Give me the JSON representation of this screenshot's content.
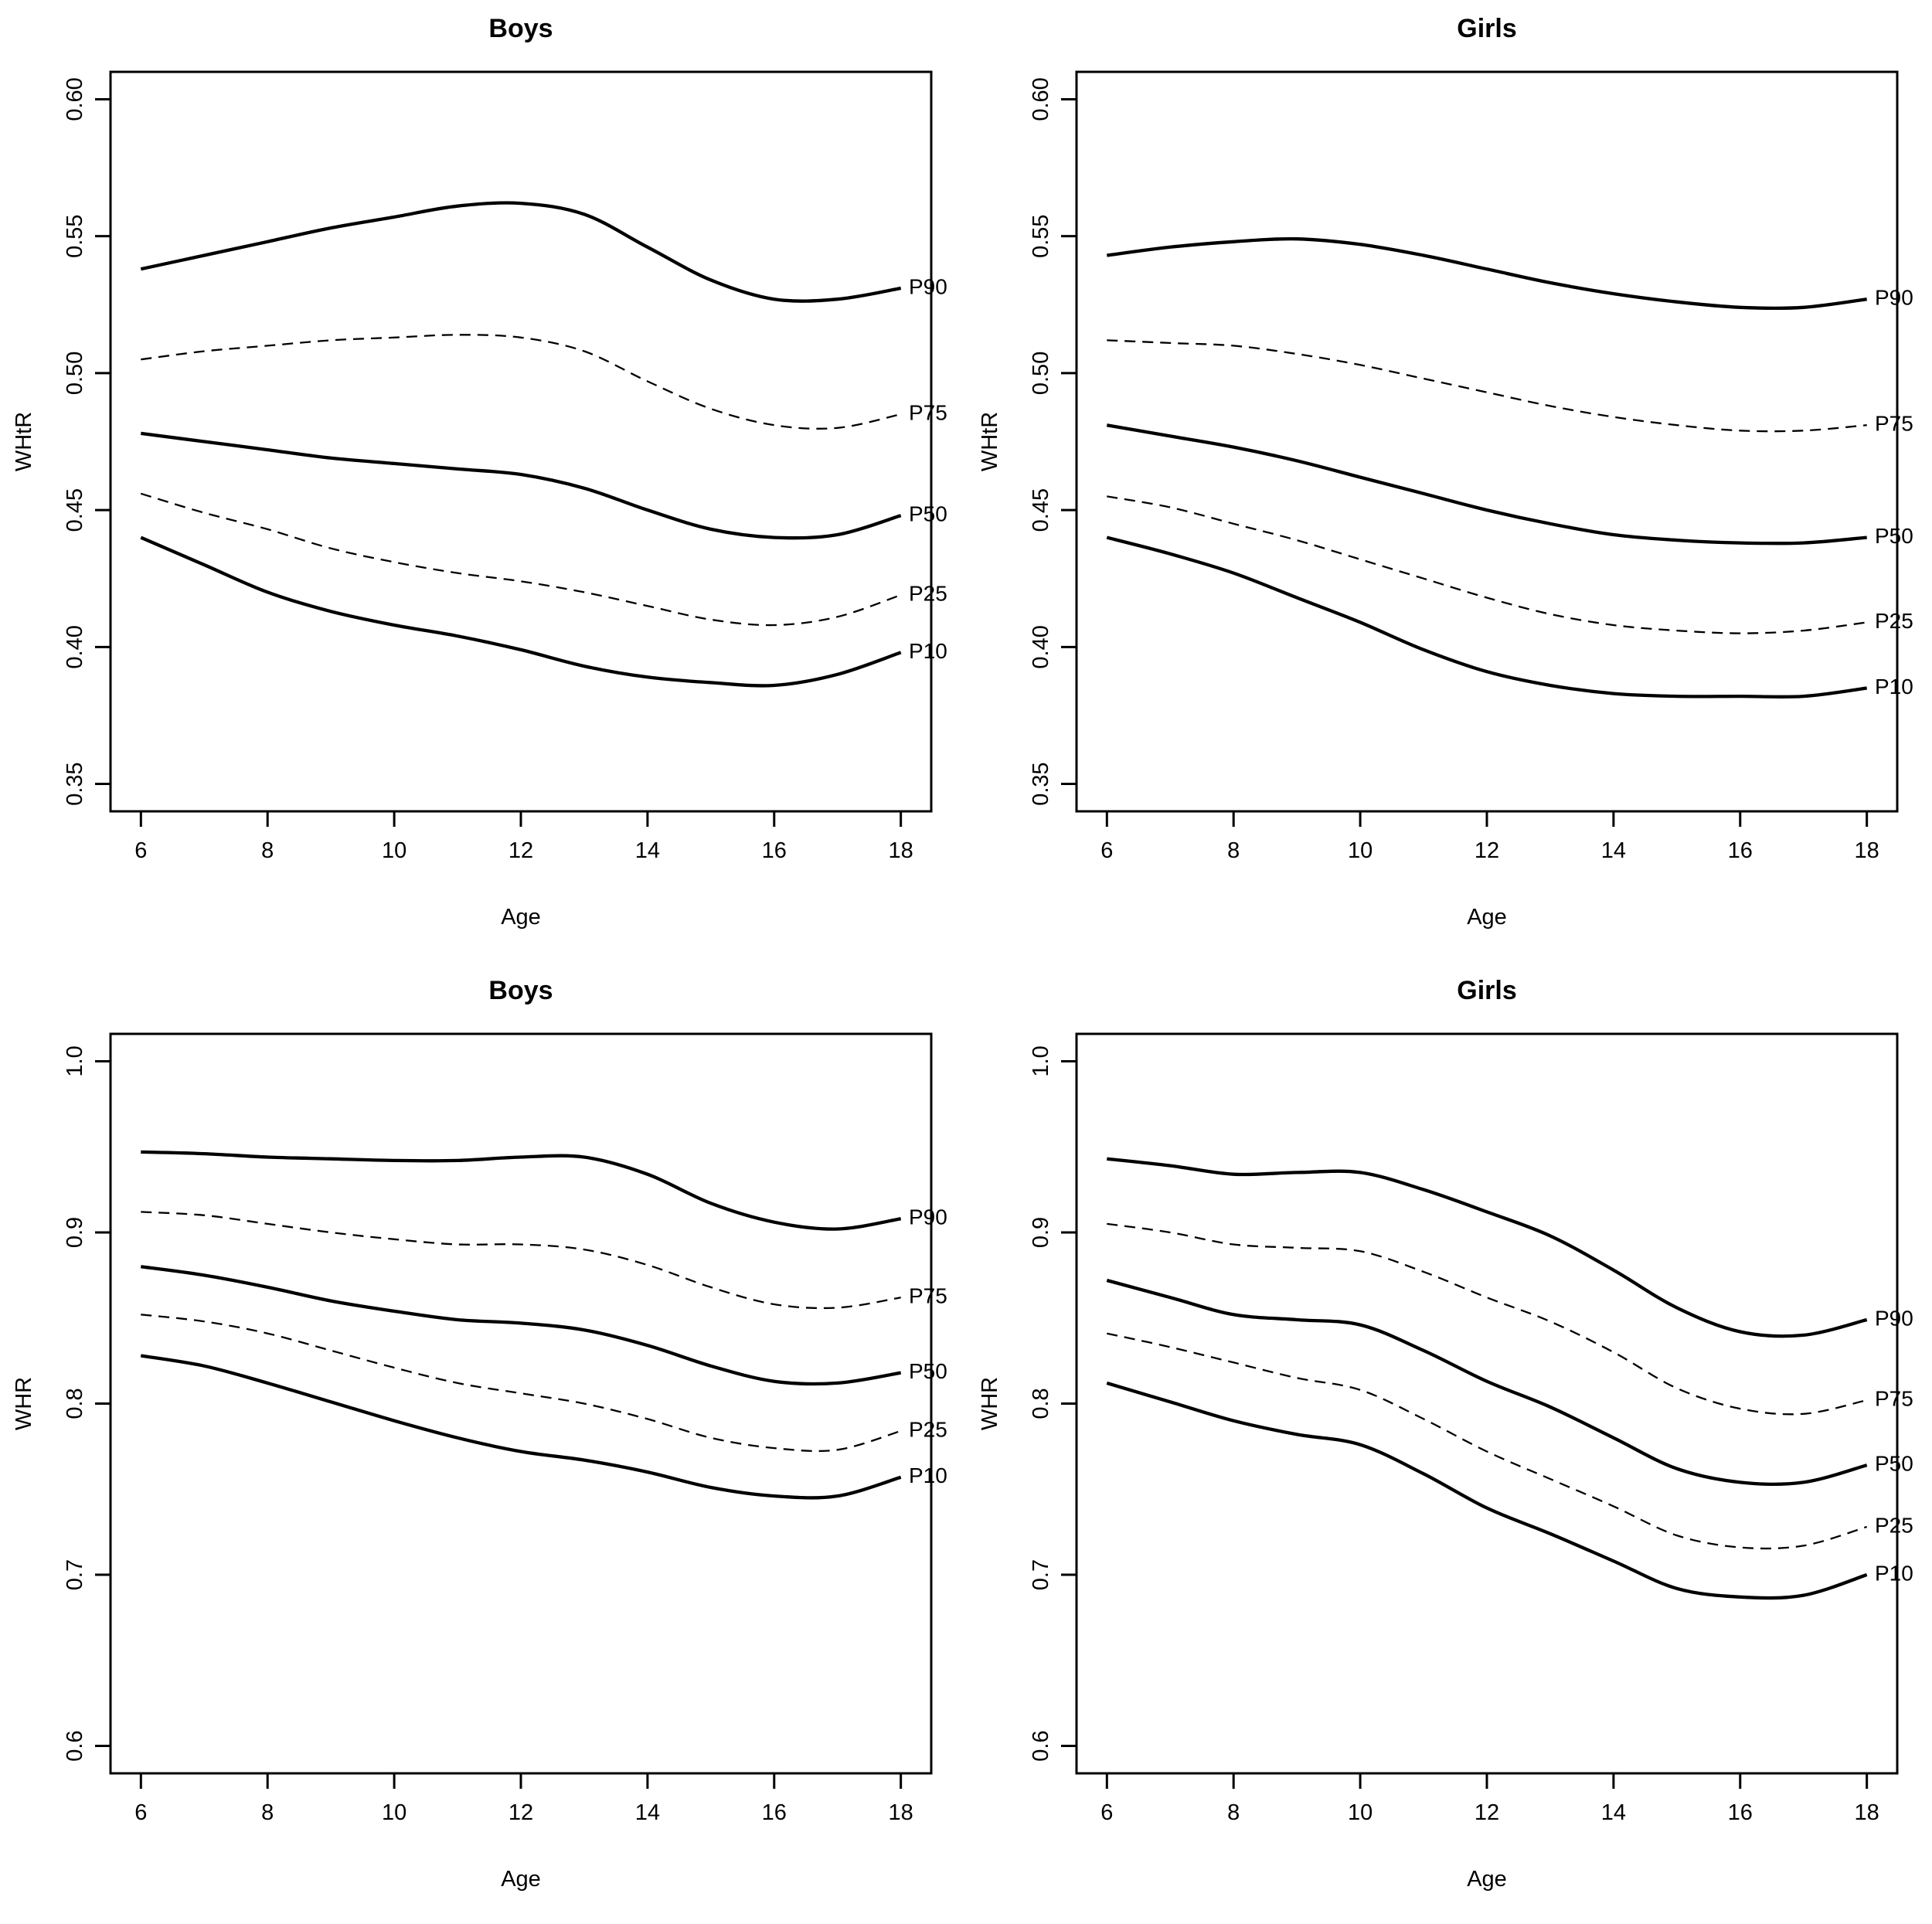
{
  "figure": {
    "background": "#ffffff",
    "ink": "#000000",
    "panels": 4,
    "description_labels": {
      "titles": [
        "Boys",
        "Girls",
        "Boys",
        "Girls"
      ],
      "y_axis_titles": [
        "WHtR",
        "WHtR",
        "WHR",
        "WHR"
      ],
      "x_axis_title": "Age",
      "curve_labels": [
        "P90",
        "P75",
        "P50",
        "P25",
        "P10"
      ]
    }
  },
  "chart_data": [
    {
      "type": "line",
      "title": "Boys",
      "xlabel": "Age",
      "ylabel": "WHtR",
      "x": [
        6,
        7,
        8,
        9,
        10,
        11,
        12,
        13,
        14,
        15,
        16,
        17,
        18
      ],
      "xticks": [
        6,
        8,
        10,
        12,
        14,
        16,
        18
      ],
      "xtick_labels": [
        "6",
        "8",
        "10",
        "12",
        "14",
        "16",
        "18"
      ],
      "yticks": [
        0.35,
        0.4,
        0.45,
        0.5,
        0.55,
        0.6
      ],
      "ytick_labels": [
        "0.35",
        "0.40",
        "0.45",
        "0.50",
        "0.55",
        "0.60"
      ],
      "xlim": [
        5.52,
        18.48
      ],
      "ylim": [
        0.34,
        0.61
      ],
      "grid": false,
      "legend_position": "curve-ends-right",
      "series": [
        {
          "name": "P90",
          "line_style": "solid",
          "values": [
            0.538,
            0.543,
            0.548,
            0.553,
            0.557,
            0.561,
            0.562,
            0.558,
            0.546,
            0.534,
            0.527,
            0.527,
            0.531
          ]
        },
        {
          "name": "P75",
          "line_style": "dashed",
          "values": [
            0.505,
            0.508,
            0.51,
            0.512,
            0.513,
            0.514,
            0.513,
            0.508,
            0.497,
            0.487,
            0.481,
            0.48,
            0.485
          ]
        },
        {
          "name": "P50",
          "line_style": "solid",
          "values": [
            0.478,
            0.475,
            0.472,
            0.469,
            0.467,
            0.465,
            0.463,
            0.458,
            0.45,
            0.443,
            0.44,
            0.441,
            0.448
          ]
        },
        {
          "name": "P25",
          "line_style": "dashed",
          "values": [
            0.456,
            0.449,
            0.443,
            0.436,
            0.431,
            0.427,
            0.424,
            0.42,
            0.415,
            0.41,
            0.408,
            0.411,
            0.419
          ]
        },
        {
          "name": "P10",
          "line_style": "solid",
          "values": [
            0.44,
            0.43,
            0.42,
            0.413,
            0.408,
            0.404,
            0.399,
            0.393,
            0.389,
            0.387,
            0.386,
            0.39,
            0.398
          ]
        }
      ]
    },
    {
      "type": "line",
      "title": "Girls",
      "xlabel": "Age",
      "ylabel": "WHtR",
      "x": [
        6,
        7,
        8,
        9,
        10,
        11,
        12,
        13,
        14,
        15,
        16,
        17,
        18
      ],
      "xticks": [
        6,
        8,
        10,
        12,
        14,
        16,
        18
      ],
      "xtick_labels": [
        "6",
        "8",
        "10",
        "12",
        "14",
        "16",
        "18"
      ],
      "yticks": [
        0.35,
        0.4,
        0.45,
        0.5,
        0.55,
        0.6
      ],
      "ytick_labels": [
        "0.35",
        "0.40",
        "0.45",
        "0.50",
        "0.55",
        "0.60"
      ],
      "xlim": [
        5.52,
        18.48
      ],
      "ylim": [
        0.34,
        0.61
      ],
      "grid": false,
      "legend_position": "curve-ends-right",
      "series": [
        {
          "name": "P90",
          "line_style": "solid",
          "values": [
            0.543,
            0.546,
            0.548,
            0.549,
            0.547,
            0.543,
            0.538,
            0.533,
            0.529,
            0.526,
            0.524,
            0.524,
            0.527
          ]
        },
        {
          "name": "P75",
          "line_style": "dashed",
          "values": [
            0.512,
            0.511,
            0.51,
            0.507,
            0.503,
            0.498,
            0.493,
            0.488,
            0.484,
            0.481,
            0.479,
            0.479,
            0.481
          ]
        },
        {
          "name": "P50",
          "line_style": "solid",
          "values": [
            0.481,
            0.477,
            0.473,
            0.468,
            0.462,
            0.456,
            0.45,
            0.445,
            0.441,
            0.439,
            0.438,
            0.438,
            0.44
          ]
        },
        {
          "name": "P25",
          "line_style": "dashed",
          "values": [
            0.455,
            0.451,
            0.445,
            0.439,
            0.432,
            0.425,
            0.418,
            0.412,
            0.408,
            0.406,
            0.405,
            0.406,
            0.409
          ]
        },
        {
          "name": "P10",
          "line_style": "solid",
          "values": [
            0.44,
            0.434,
            0.427,
            0.418,
            0.409,
            0.399,
            0.391,
            0.386,
            0.383,
            0.382,
            0.382,
            0.382,
            0.385
          ]
        }
      ]
    },
    {
      "type": "line",
      "title": "Boys",
      "xlabel": "Age",
      "ylabel": "WHR",
      "x": [
        6,
        7,
        8,
        9,
        10,
        11,
        12,
        13,
        14,
        15,
        16,
        17,
        18
      ],
      "xticks": [
        6,
        8,
        10,
        12,
        14,
        16,
        18
      ],
      "xtick_labels": [
        "6",
        "8",
        "10",
        "12",
        "14",
        "16",
        "18"
      ],
      "yticks": [
        0.6,
        0.7,
        0.8,
        0.9,
        1.0
      ],
      "ytick_labels": [
        "0.6",
        "0.7",
        "0.8",
        "0.9",
        "1.0"
      ],
      "xlim": [
        5.52,
        18.48
      ],
      "ylim": [
        0.584,
        1.016
      ],
      "grid": false,
      "legend_position": "curve-ends-right",
      "series": [
        {
          "name": "P90",
          "line_style": "solid",
          "values": [
            0.947,
            0.946,
            0.944,
            0.943,
            0.942,
            0.942,
            0.944,
            0.944,
            0.934,
            0.917,
            0.906,
            0.902,
            0.908
          ]
        },
        {
          "name": "P75",
          "line_style": "dashed",
          "values": [
            0.912,
            0.91,
            0.905,
            0.9,
            0.896,
            0.893,
            0.893,
            0.89,
            0.881,
            0.868,
            0.858,
            0.856,
            0.862
          ]
        },
        {
          "name": "P50",
          "line_style": "solid",
          "values": [
            0.88,
            0.875,
            0.868,
            0.86,
            0.854,
            0.849,
            0.847,
            0.843,
            0.834,
            0.822,
            0.813,
            0.812,
            0.818
          ]
        },
        {
          "name": "P25",
          "line_style": "dashed",
          "values": [
            0.852,
            0.848,
            0.841,
            0.831,
            0.821,
            0.812,
            0.806,
            0.8,
            0.791,
            0.78,
            0.774,
            0.773,
            0.784
          ]
        },
        {
          "name": "P10",
          "line_style": "solid",
          "values": [
            0.828,
            0.822,
            0.812,
            0.801,
            0.79,
            0.78,
            0.772,
            0.767,
            0.76,
            0.751,
            0.746,
            0.746,
            0.757
          ]
        }
      ]
    },
    {
      "type": "line",
      "title": "Girls",
      "xlabel": "Age",
      "ylabel": "WHR",
      "x": [
        6,
        7,
        8,
        9,
        10,
        11,
        12,
        13,
        14,
        15,
        16,
        17,
        18
      ],
      "xticks": [
        6,
        8,
        10,
        12,
        14,
        16,
        18
      ],
      "xtick_labels": [
        "6",
        "8",
        "10",
        "12",
        "14",
        "16",
        "18"
      ],
      "yticks": [
        0.6,
        0.7,
        0.8,
        0.9,
        1.0
      ],
      "ytick_labels": [
        "0.6",
        "0.7",
        "0.8",
        "0.9",
        "1.0"
      ],
      "xlim": [
        5.52,
        18.48
      ],
      "ylim": [
        0.584,
        1.016
      ],
      "grid": false,
      "legend_position": "curve-ends-right",
      "series": [
        {
          "name": "P90",
          "line_style": "solid",
          "values": [
            0.943,
            0.939,
            0.934,
            0.935,
            0.935,
            0.925,
            0.912,
            0.898,
            0.878,
            0.856,
            0.842,
            0.84,
            0.849
          ]
        },
        {
          "name": "P75",
          "line_style": "dashed",
          "values": [
            0.905,
            0.9,
            0.893,
            0.891,
            0.889,
            0.877,
            0.862,
            0.848,
            0.83,
            0.809,
            0.797,
            0.794,
            0.802
          ]
        },
        {
          "name": "P50",
          "line_style": "solid",
          "values": [
            0.872,
            0.862,
            0.852,
            0.849,
            0.846,
            0.831,
            0.813,
            0.798,
            0.78,
            0.762,
            0.754,
            0.754,
            0.764
          ]
        },
        {
          "name": "P25",
          "line_style": "dashed",
          "values": [
            0.841,
            0.833,
            0.824,
            0.815,
            0.808,
            0.791,
            0.772,
            0.756,
            0.74,
            0.723,
            0.716,
            0.717,
            0.728
          ]
        },
        {
          "name": "P10",
          "line_style": "solid",
          "values": [
            0.812,
            0.801,
            0.79,
            0.782,
            0.776,
            0.759,
            0.739,
            0.724,
            0.708,
            0.692,
            0.687,
            0.688,
            0.7
          ]
        }
      ]
    }
  ]
}
